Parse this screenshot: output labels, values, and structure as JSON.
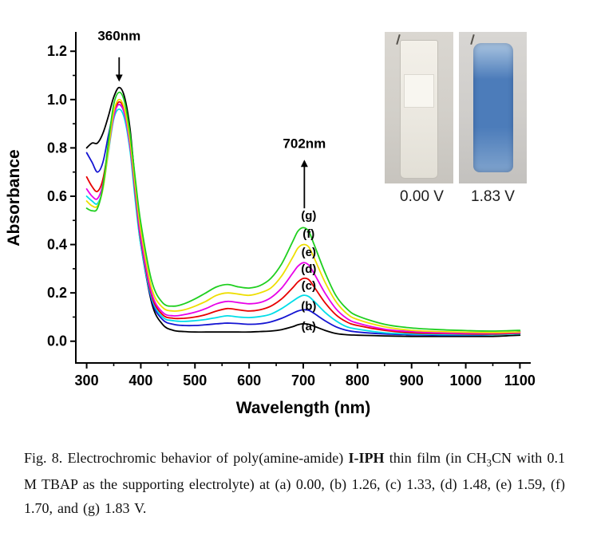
{
  "page": {
    "background": "#ffffff"
  },
  "chart_data": {
    "type": "line",
    "title": "",
    "xlabel": "Wavelength (nm)",
    "ylabel": "Absorbance",
    "xlim": [
      280,
      1120
    ],
    "ylim": [
      -0.09,
      1.28
    ],
    "x_ticks": [
      300,
      400,
      500,
      600,
      700,
      800,
      900,
      1000,
      1100
    ],
    "y_ticks": [
      {
        "v": 0.0,
        "label": "0.0"
      },
      {
        "v": 0.2,
        "label": "0.2"
      },
      {
        "v": 0.4,
        "label": "0.4"
      },
      {
        "v": 0.6,
        "label": "0.6"
      },
      {
        "v": 0.8,
        "label": "0.8"
      },
      {
        "v": 1.0,
        "label": "1.0"
      },
      {
        "v": 1.2,
        "label": "1.2"
      }
    ],
    "grid": false,
    "legend": "none",
    "label_x": 710,
    "x": [
      300,
      310,
      320,
      330,
      340,
      350,
      360,
      370,
      380,
      390,
      400,
      420,
      440,
      460,
      480,
      500,
      520,
      540,
      560,
      580,
      600,
      620,
      640,
      660,
      680,
      690,
      700,
      710,
      720,
      740,
      760,
      780,
      800,
      850,
      900,
      950,
      1000,
      1050,
      1100
    ],
    "series": [
      {
        "id": "a",
        "name": "(a)",
        "color": "#000000",
        "label_y": 0.046,
        "values": [
          0.8,
          0.82,
          0.82,
          0.86,
          0.93,
          1.01,
          1.05,
          1.01,
          0.88,
          0.65,
          0.42,
          0.16,
          0.07,
          0.045,
          0.04,
          0.038,
          0.038,
          0.038,
          0.038,
          0.038,
          0.038,
          0.04,
          0.042,
          0.048,
          0.06,
          0.068,
          0.072,
          0.07,
          0.062,
          0.045,
          0.032,
          0.027,
          0.025,
          0.022,
          0.02,
          0.02,
          0.02,
          0.02,
          0.025
        ]
      },
      {
        "id": "b",
        "name": "(b)",
        "color": "#1414d2",
        "label_y": 0.13,
        "values": [
          0.78,
          0.74,
          0.7,
          0.74,
          0.85,
          0.95,
          0.98,
          0.94,
          0.81,
          0.6,
          0.4,
          0.17,
          0.09,
          0.07,
          0.065,
          0.065,
          0.068,
          0.072,
          0.075,
          0.073,
          0.07,
          0.072,
          0.08,
          0.095,
          0.115,
          0.125,
          0.13,
          0.128,
          0.115,
          0.085,
          0.06,
          0.045,
          0.038,
          0.03,
          0.027,
          0.025,
          0.025,
          0.027,
          0.04
        ]
      },
      {
        "id": "c",
        "name": "(c)",
        "color": "#00dde8",
        "label_y": 0.213,
        "values": [
          0.6,
          0.58,
          0.57,
          0.63,
          0.78,
          0.92,
          0.96,
          0.92,
          0.79,
          0.58,
          0.4,
          0.18,
          0.1,
          0.085,
          0.082,
          0.085,
          0.09,
          0.098,
          0.105,
          0.1,
          0.098,
          0.102,
          0.112,
          0.135,
          0.165,
          0.18,
          0.19,
          0.185,
          0.165,
          0.12,
          0.085,
          0.06,
          0.05,
          0.035,
          0.03,
          0.028,
          0.027,
          0.027,
          0.03
        ]
      },
      {
        "id": "d",
        "name": "(d)",
        "color": "#e80000",
        "label_y": 0.283,
        "values": [
          0.68,
          0.64,
          0.62,
          0.67,
          0.8,
          0.94,
          0.99,
          0.95,
          0.81,
          0.61,
          0.42,
          0.19,
          0.11,
          0.095,
          0.095,
          0.1,
          0.11,
          0.125,
          0.135,
          0.13,
          0.125,
          0.13,
          0.145,
          0.175,
          0.22,
          0.245,
          0.26,
          0.255,
          0.225,
          0.16,
          0.11,
          0.08,
          0.065,
          0.045,
          0.035,
          0.032,
          0.03,
          0.03,
          0.033
        ]
      },
      {
        "id": "e",
        "name": "(e)",
        "color": "#e800e8",
        "label_y": 0.352,
        "values": [
          0.63,
          0.6,
          0.59,
          0.65,
          0.79,
          0.93,
          0.98,
          0.94,
          0.81,
          0.62,
          0.43,
          0.2,
          0.12,
          0.105,
          0.11,
          0.12,
          0.135,
          0.155,
          0.165,
          0.16,
          0.155,
          0.16,
          0.18,
          0.22,
          0.28,
          0.31,
          0.325,
          0.315,
          0.28,
          0.2,
          0.135,
          0.095,
          0.075,
          0.05,
          0.04,
          0.035,
          0.033,
          0.033,
          0.035
        ]
      },
      {
        "id": "f",
        "name": "(f)",
        "color": "#eede00",
        "label_y": 0.428,
        "values": [
          0.58,
          0.56,
          0.56,
          0.63,
          0.79,
          0.95,
          1.0,
          0.96,
          0.83,
          0.64,
          0.46,
          0.22,
          0.14,
          0.125,
          0.13,
          0.145,
          0.165,
          0.19,
          0.2,
          0.195,
          0.19,
          0.2,
          0.22,
          0.27,
          0.345,
          0.385,
          0.4,
          0.39,
          0.345,
          0.245,
          0.165,
          0.115,
          0.09,
          0.06,
          0.045,
          0.04,
          0.037,
          0.036,
          0.038
        ]
      },
      {
        "id": "g",
        "name": "(g)",
        "color": "#1fcf1f",
        "label_y": 0.505,
        "values": [
          0.55,
          0.54,
          0.55,
          0.64,
          0.82,
          0.98,
          1.03,
          0.99,
          0.86,
          0.67,
          0.49,
          0.25,
          0.16,
          0.145,
          0.155,
          0.175,
          0.2,
          0.225,
          0.235,
          0.225,
          0.22,
          0.23,
          0.26,
          0.32,
          0.41,
          0.455,
          0.47,
          0.455,
          0.4,
          0.285,
          0.19,
          0.135,
          0.105,
          0.07,
          0.055,
          0.048,
          0.044,
          0.042,
          0.045
        ]
      }
    ],
    "annotations": [
      {
        "id": "peak-360",
        "text": "360nm",
        "x": 360,
        "text_y": 1.245,
        "arrow_tail_y": 1.175,
        "arrow_head_y": 1.08
      },
      {
        "id": "peak-702",
        "text": "702nm",
        "x": 702,
        "text_y": 0.8,
        "arrow_tail_y": 0.55,
        "arrow_head_y": 0.745
      }
    ]
  },
  "inset": {
    "left_label": "0.00 V",
    "right_label": "1.83 V",
    "left_cuvette_color": "#f0ede6",
    "right_cuvette_color": "#4c7cba"
  },
  "caption": {
    "part1": "Fig. 8. Electrochromic behavior of poly(amine-amide) ",
    "polymer": "I-IPH",
    "part2": " thin film (in CH",
    "sub": "3",
    "part3": "CN with 0.1 M TBAP as the supporting electrolyte) at (a) 0.00, (b) 1.26, (c) 1.33, (d) 1.48, (e) 1.59, (f) 1.70, and (g) 1.83 V."
  }
}
